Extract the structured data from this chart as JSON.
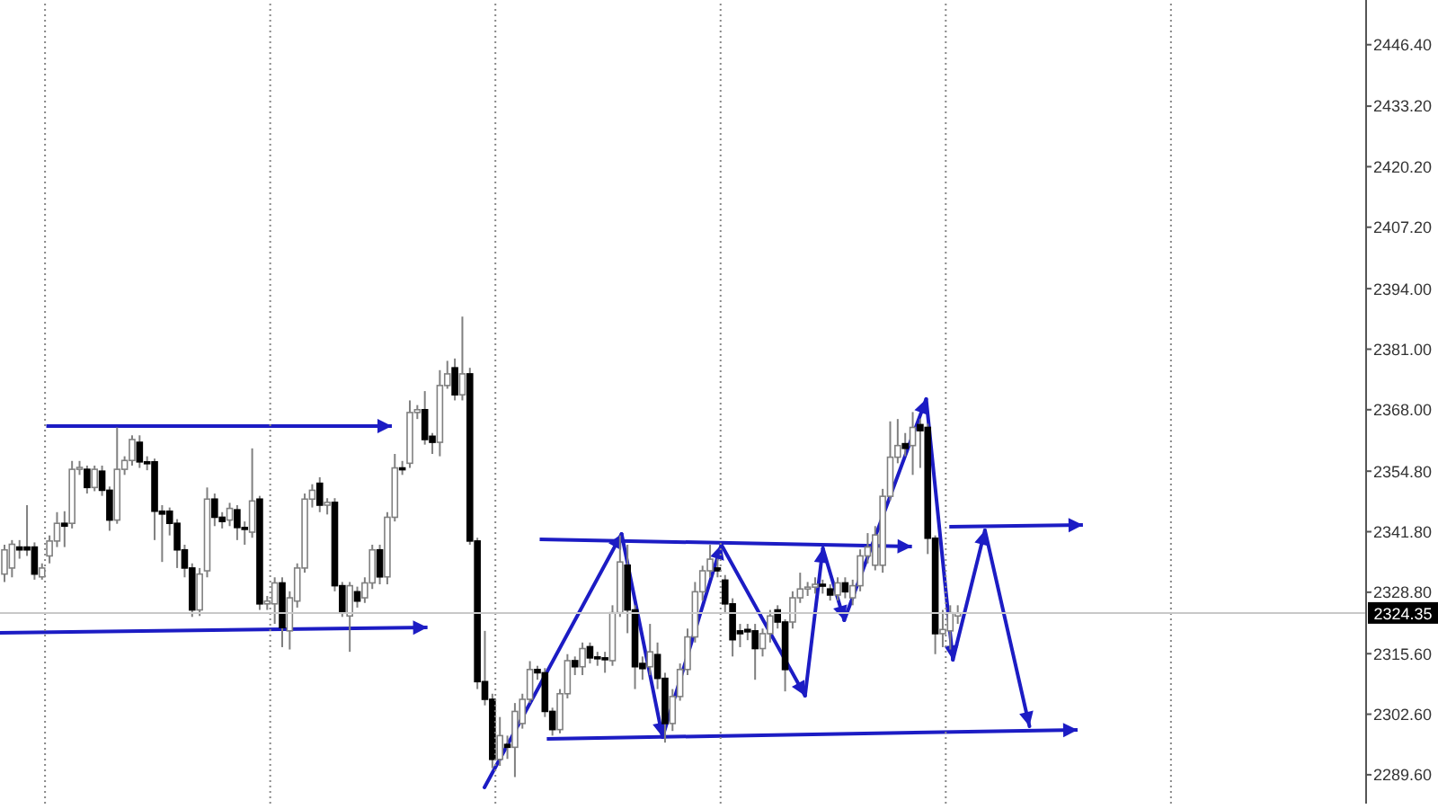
{
  "chart_data": {
    "type": "candlestick",
    "categories": [
      null,
      null,
      null,
      null,
      null,
      null,
      null,
      null,
      null,
      null,
      null,
      null,
      null,
      null,
      null,
      null,
      null,
      null,
      null,
      null,
      null,
      null,
      null,
      null,
      null,
      null,
      null,
      null,
      null,
      null,
      null,
      null,
      null,
      null,
      null,
      null,
      null,
      null,
      null,
      null,
      null,
      null,
      null,
      null,
      null,
      null,
      null,
      null,
      null,
      null,
      null,
      null,
      null,
      null,
      null,
      null,
      null,
      null,
      null,
      null,
      null,
      null,
      null,
      null,
      null,
      null,
      null,
      null,
      null,
      null,
      null,
      null,
      null,
      null,
      null,
      null,
      null,
      null,
      null,
      null,
      null,
      null,
      null,
      null,
      null,
      null,
      null,
      null,
      null,
      null,
      null,
      null,
      null,
      null,
      null,
      null,
      null,
      null,
      null,
      null,
      null,
      null,
      null,
      null,
      null,
      null,
      null,
      null,
      null,
      null,
      null,
      null,
      null,
      null,
      null,
      null,
      null,
      null,
      null,
      null,
      null,
      null,
      null,
      null,
      null,
      null,
      null,
      null,
      null,
      null,
      null,
      null,
      null,
      null,
      null,
      null,
      null,
      null,
      null,
      null,
      null,
      null,
      null,
      null,
      null,
      null,
      null,
      null,
      null,
      null,
      null,
      null,
      null,
      null,
      null,
      null,
      null,
      null,
      null,
      null,
      null,
      null,
      null,
      null,
      null,
      null,
      null,
      null,
      null,
      null,
      null,
      null,
      null,
      null,
      null,
      null,
      null,
      null,
      null,
      null,
      null,
      null
    ],
    "ohlc": [
      [
        2332.7,
        2339,
        2331,
        2337.9
      ],
      [
        2334,
        2340,
        2332,
        2339.1
      ],
      [
        2338.5,
        2340,
        2336,
        2337.9
      ],
      [
        2338.5,
        2347.5,
        2336.6,
        2337.9
      ],
      [
        2338.5,
        2339.5,
        2331.5,
        2332.7
      ],
      [
        2332.1,
        2335,
        2331.5,
        2334
      ],
      [
        2336.6,
        2341,
        2335,
        2339.8
      ],
      [
        2339.8,
        2346,
        2338.5,
        2343.6
      ],
      [
        2343.6,
        2346.2,
        2338.5,
        2343
      ],
      [
        2343.6,
        2357,
        2342.5,
        2355.2
      ],
      [
        2355.2,
        2357,
        2354,
        2355.6
      ],
      [
        2355.2,
        2356,
        2350,
        2351.3
      ],
      [
        2351.3,
        2356,
        2350.5,
        2355.2
      ],
      [
        2354.8,
        2356,
        2349.5,
        2350.7
      ],
      [
        2350.7,
        2351.5,
        2342,
        2344.3
      ],
      [
        2344.3,
        2364.2,
        2343.5,
        2355.2
      ],
      [
        2355.2,
        2358,
        2354,
        2357.1
      ],
      [
        2357.1,
        2362.5,
        2356,
        2361.6
      ],
      [
        2361,
        2362.5,
        2355.5,
        2356.8
      ],
      [
        2356.8,
        2358,
        2355,
        2356.5
      ],
      [
        2356.8,
        2357.5,
        2340,
        2346.2
      ],
      [
        2346.2,
        2347.5,
        2335.3,
        2345.6
      ],
      [
        2346.2,
        2347,
        2341,
        2343.6
      ],
      [
        2343.6,
        2344.5,
        2334,
        2337.9
      ],
      [
        2337.9,
        2339,
        2332,
        2334
      ],
      [
        2334,
        2335,
        2323.5,
        2325
      ],
      [
        2325,
        2334,
        2323.7,
        2332.7
      ],
      [
        2333.4,
        2351.3,
        2332,
        2348.8
      ],
      [
        2348.8,
        2350,
        2343,
        2344.9
      ],
      [
        2344.9,
        2346,
        2342.5,
        2344
      ],
      [
        2344.3,
        2348,
        2343,
        2346.8
      ],
      [
        2346.5,
        2347.5,
        2340,
        2342.7
      ],
      [
        2342.7,
        2344,
        2339,
        2342.3
      ],
      [
        2341.7,
        2359.7,
        2340.5,
        2348.4
      ],
      [
        2348.8,
        2349.5,
        2325,
        2326.3
      ],
      [
        2326.3,
        2328,
        2325,
        2326.9
      ],
      [
        2326.3,
        2332,
        2322,
        2330.8
      ],
      [
        2330.8,
        2332,
        2317,
        2321.2
      ],
      [
        2320.5,
        2329,
        2316.5,
        2327.6
      ],
      [
        2326.9,
        2335,
        2325.5,
        2334
      ],
      [
        2334,
        2350,
        2333,
        2348.8
      ],
      [
        2348.8,
        2352,
        2347,
        2350.7
      ],
      [
        2352.2,
        2353.5,
        2346,
        2347.5
      ],
      [
        2347.5,
        2349,
        2345.5,
        2348.1
      ],
      [
        2348.1,
        2349,
        2329,
        2330.2
      ],
      [
        2330.2,
        2331,
        2323.5,
        2324.4
      ],
      [
        2323.7,
        2331,
        2316,
        2330.2
      ],
      [
        2328.9,
        2330,
        2325.5,
        2326.9
      ],
      [
        2327.6,
        2332,
        2326.5,
        2330.8
      ],
      [
        2330.8,
        2339,
        2329.5,
        2337.9
      ],
      [
        2337.9,
        2339,
        2330.5,
        2332.1
      ],
      [
        2332.1,
        2346,
        2330.5,
        2344.9
      ],
      [
        2344.9,
        2358.5,
        2344,
        2355.5
      ],
      [
        2355.5,
        2357,
        2354,
        2355.2
      ],
      [
        2356.5,
        2370,
        2355.5,
        2367.4
      ],
      [
        2367.4,
        2369,
        2366,
        2368
      ],
      [
        2368,
        2372,
        2360.5,
        2361.6
      ],
      [
        2362.3,
        2363,
        2358.5,
        2361
      ],
      [
        2361,
        2376.5,
        2358,
        2373.2
      ],
      [
        2373.2,
        2378.5,
        2372.5,
        2375.7
      ],
      [
        2377,
        2379,
        2370,
        2371.2
      ],
      [
        2371.2,
        2388,
        2370,
        2375.7
      ],
      [
        2375.7,
        2377,
        2339,
        2339.8
      ],
      [
        2339.8,
        2340.5,
        2308,
        2309.6
      ],
      [
        2309.6,
        2320.5,
        2304.5,
        2305.8
      ],
      [
        2305.8,
        2307,
        2291,
        2292.9
      ],
      [
        2292.9,
        2302,
        2291.5,
        2298
      ],
      [
        2296.1,
        2298,
        2293,
        2295.5
      ],
      [
        2295.5,
        2305,
        2289.1,
        2303.2
      ],
      [
        2300.6,
        2307,
        2299.5,
        2305.8
      ],
      [
        2305.8,
        2314,
        2305,
        2312.2
      ],
      [
        2312.2,
        2313,
        2310,
        2311.5
      ],
      [
        2311.5,
        2312.5,
        2302,
        2303.2
      ],
      [
        2303.2,
        2304,
        2298,
        2299.3
      ],
      [
        2299.3,
        2308,
        2298.5,
        2307
      ],
      [
        2307,
        2315.5,
        2306,
        2314.1
      ],
      [
        2314.1,
        2315,
        2311,
        2312.8
      ],
      [
        2312.8,
        2318,
        2311,
        2316.7
      ],
      [
        2317.1,
        2318,
        2313.5,
        2314.7
      ],
      [
        2314.9,
        2316,
        2313,
        2314.7
      ],
      [
        2314.7,
        2316,
        2311.5,
        2314.5
      ],
      [
        2314.1,
        2326,
        2313,
        2324.4
      ],
      [
        2324.4,
        2341,
        2323.5,
        2335.3
      ],
      [
        2334.6,
        2339,
        2320,
        2325
      ],
      [
        2325,
        2326,
        2308,
        2312.8
      ],
      [
        2313.5,
        2315,
        2310,
        2312.4
      ],
      [
        2312.8,
        2322,
        2311,
        2316
      ],
      [
        2315.4,
        2318,
        2308,
        2310.3
      ],
      [
        2310.3,
        2311.5,
        2296.5,
        2300.6
      ],
      [
        2300.6,
        2308,
        2299,
        2306.4
      ],
      [
        2306.4,
        2313.5,
        2305.5,
        2312.2
      ],
      [
        2312.2,
        2321,
        2311,
        2319.2
      ],
      [
        2319.2,
        2331,
        2318,
        2328.9
      ],
      [
        2328.9,
        2334.5,
        2327,
        2333.4
      ],
      [
        2333.4,
        2339,
        2332,
        2335.9
      ],
      [
        2334,
        2336,
        2332,
        2333.4
      ],
      [
        2331.4,
        2332.5,
        2324.5,
        2326.3
      ],
      [
        2326.3,
        2327.5,
        2315,
        2318.6
      ],
      [
        2320.5,
        2322,
        2317,
        2319.9
      ],
      [
        2320.8,
        2322,
        2318.5,
        2320.3
      ],
      [
        2320.5,
        2322,
        2310,
        2316.7
      ],
      [
        2316.7,
        2321,
        2315,
        2319.9
      ],
      [
        2319.9,
        2325,
        2318,
        2323.7
      ],
      [
        2325,
        2326,
        2321,
        2322.4
      ],
      [
        2322.4,
        2323,
        2307.5,
        2312.2
      ],
      [
        2322.4,
        2329,
        2321,
        2327.6
      ],
      [
        2327.6,
        2333,
        2326.5,
        2329.5
      ],
      [
        2329.5,
        2331,
        2328,
        2329.9
      ],
      [
        2329.9,
        2332,
        2328.5,
        2330.5
      ],
      [
        2330.5,
        2331.5,
        2328.5,
        2330.2
      ],
      [
        2329.5,
        2330.5,
        2327,
        2328.2
      ],
      [
        2328.2,
        2332,
        2327,
        2330.8
      ],
      [
        2330.8,
        2332,
        2327.5,
        2328.9
      ],
      [
        2327.6,
        2331.5,
        2326,
        2330.2
      ],
      [
        2330.2,
        2338,
        2329,
        2336.6
      ],
      [
        2336.6,
        2341.5,
        2335,
        2338.5
      ],
      [
        2334.6,
        2343,
        2333.5,
        2341.1
      ],
      [
        2334.6,
        2351,
        2333,
        2349.4
      ],
      [
        2349.4,
        2365.5,
        2348.5,
        2357.8
      ],
      [
        2357.8,
        2366,
        2356.5,
        2360.3
      ],
      [
        2360.7,
        2363,
        2358,
        2359.7
      ],
      [
        2360.3,
        2367.5,
        2354,
        2364.2
      ],
      [
        2364.8,
        2366,
        2355.5,
        2363.5
      ],
      [
        2364.2,
        2365,
        2337,
        2340.4
      ],
      [
        2340.4,
        2341,
        2315.5,
        2319.9
      ],
      [
        2319.9,
        2325,
        2317,
        2320.8
      ],
      [
        2320.5,
        2326,
        2316.5,
        2324.4
      ],
      [
        2323.7,
        2326,
        2322,
        2324.35
      ],
      null,
      null,
      null,
      null,
      null,
      null,
      null,
      null,
      null,
      null,
      null,
      null,
      null,
      null,
      null,
      null,
      null,
      null,
      null,
      null,
      null,
      null,
      null,
      null,
      null,
      null,
      null,
      null,
      null,
      null,
      null,
      null,
      null,
      null,
      null,
      null,
      null,
      null,
      null,
      null,
      null,
      null,
      null,
      null,
      null,
      null,
      null,
      null,
      null,
      null,
      null,
      null,
      null,
      null
    ],
    "ylim": [
      2283.4,
      2456.0
    ],
    "yticks": [
      {
        "value": 2289.6,
        "label": "2289.60"
      },
      {
        "value": 2302.6,
        "label": "2302.60"
      },
      {
        "value": 2315.6,
        "label": "2315.60"
      },
      {
        "value": 2328.8,
        "label": "2328.80"
      },
      {
        "value": 2341.8,
        "label": "2341.80"
      },
      {
        "value": 2354.8,
        "label": "2354.80"
      },
      {
        "value": 2368.0,
        "label": "2368.00"
      },
      {
        "value": 2381.0,
        "label": "2381.00"
      },
      {
        "value": 2394.0,
        "label": "2394.00"
      },
      {
        "value": 2407.2,
        "label": "2407.20"
      },
      {
        "value": 2420.2,
        "label": "2420.20"
      },
      {
        "value": 2433.2,
        "label": "2433.20"
      },
      {
        "value": 2446.4,
        "label": "2446.40"
      }
    ],
    "ref_lines": [
      {
        "axis": "y",
        "value": 2324.35,
        "label": "2324.35",
        "color": "#c8c8c8"
      }
    ],
    "tick_labels": "y"
  }
}
